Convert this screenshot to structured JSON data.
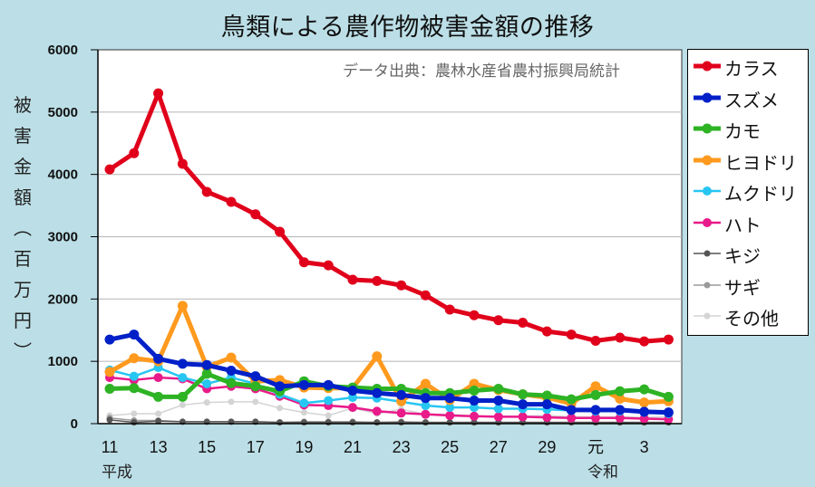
{
  "chart_data": {
    "type": "line",
    "title": "鳥類による農作物被害金額の推移",
    "source_note": "データ出典：農林水産省農村振興局統計",
    "ylabel": "被害金額（百万円）",
    "ylabel_chars": [
      "被",
      "害",
      "金",
      "額",
      "︵",
      "百",
      "万",
      "円",
      "︶"
    ],
    "xlabel": "",
    "ylim": [
      0,
      6000
    ],
    "yticks": [
      0,
      1000,
      2000,
      3000,
      4000,
      5000,
      6000
    ],
    "grid": true,
    "legend_position": "right",
    "x": [
      "H11",
      "H12",
      "H13",
      "H14",
      "H15",
      "H16",
      "H17",
      "H18",
      "H19",
      "H20",
      "H21",
      "H22",
      "H23",
      "H24",
      "H25",
      "H26",
      "H27",
      "H28",
      "H29",
      "H30",
      "R1",
      "R2",
      "R3",
      "R4"
    ],
    "x_tick_labels": [
      {
        "index": 0,
        "label": "11"
      },
      {
        "index": 2,
        "label": "13"
      },
      {
        "index": 4,
        "label": "15"
      },
      {
        "index": 6,
        "label": "17"
      },
      {
        "index": 8,
        "label": "19"
      },
      {
        "index": 10,
        "label": "21"
      },
      {
        "index": 12,
        "label": "23"
      },
      {
        "index": 14,
        "label": "25"
      },
      {
        "index": 16,
        "label": "27"
      },
      {
        "index": 18,
        "label": "29"
      },
      {
        "index": 20,
        "label": "元"
      },
      {
        "index": 22,
        "label": "3"
      }
    ],
    "era_labels": [
      {
        "index": 0,
        "label": "平成"
      },
      {
        "index": 20,
        "label": "令和"
      }
    ],
    "series": [
      {
        "name": "カラス",
        "color": "#e0001b",
        "weight": "heavy",
        "values": [
          4080,
          4340,
          5300,
          4170,
          3720,
          3560,
          3360,
          3080,
          2590,
          2540,
          2310,
          2290,
          2220,
          2060,
          1830,
          1740,
          1660,
          1620,
          1480,
          1430,
          1330,
          1380,
          1320,
          1350
        ]
      },
      {
        "name": "スズメ",
        "color": "#0020c8",
        "weight": "heavy",
        "values": [
          1350,
          1430,
          1040,
          960,
          940,
          850,
          760,
          600,
          620,
          620,
          530,
          490,
          460,
          410,
          410,
          370,
          370,
          310,
          310,
          220,
          220,
          220,
          190,
          180
        ]
      },
      {
        "name": "カモ",
        "color": "#2db324",
        "weight": "heavy",
        "values": [
          560,
          570,
          430,
          430,
          800,
          650,
          600,
          520,
          680,
          600,
          580,
          560,
          560,
          490,
          490,
          530,
          560,
          470,
          450,
          390,
          460,
          520,
          550,
          430
        ]
      },
      {
        "name": "ヒヨドリ",
        "color": "#ff9a1e",
        "weight": "heavy",
        "values": [
          830,
          1050,
          1000,
          1890,
          910,
          1060,
          680,
          700,
          580,
          570,
          570,
          1080,
          360,
          640,
          380,
          640,
          540,
          470,
          420,
          320,
          600,
          400,
          340,
          360
        ]
      },
      {
        "name": "ムクドリ",
        "color": "#27c6f2",
        "weight": "medium",
        "values": [
          860,
          760,
          900,
          740,
          640,
          740,
          640,
          470,
          330,
          370,
          420,
          410,
          350,
          290,
          260,
          260,
          240,
          240,
          230,
          210,
          200,
          200,
          180,
          160
        ]
      },
      {
        "name": "ハト",
        "color": "#e91a8a",
        "weight": "medium",
        "values": [
          740,
          700,
          740,
          720,
          560,
          600,
          560,
          440,
          300,
          290,
          260,
          200,
          170,
          150,
          130,
          120,
          110,
          110,
          100,
          90,
          90,
          90,
          80,
          70
        ]
      },
      {
        "name": "キジ",
        "color": "#555555",
        "weight": "light",
        "values": [
          60,
          20,
          40,
          30,
          30,
          30,
          30,
          20,
          20,
          20,
          20,
          20,
          20,
          20,
          20,
          20,
          20,
          20,
          20,
          20,
          20,
          20,
          20,
          20
        ]
      },
      {
        "name": "サギ",
        "color": "#9a9a9a",
        "weight": "light",
        "values": [
          90,
          50,
          50,
          30,
          30,
          30,
          30,
          20,
          30,
          30,
          30,
          20,
          30,
          20,
          20,
          20,
          20,
          20,
          20,
          20,
          20,
          20,
          20,
          20
        ]
      },
      {
        "name": "その他",
        "color": "#d4d4d4",
        "weight": "light",
        "values": [
          130,
          160,
          160,
          300,
          340,
          350,
          350,
          250,
          180,
          130,
          250,
          160,
          230,
          150,
          150,
          120,
          120,
          120,
          130,
          110,
          110,
          110,
          100,
          110
        ]
      }
    ]
  }
}
